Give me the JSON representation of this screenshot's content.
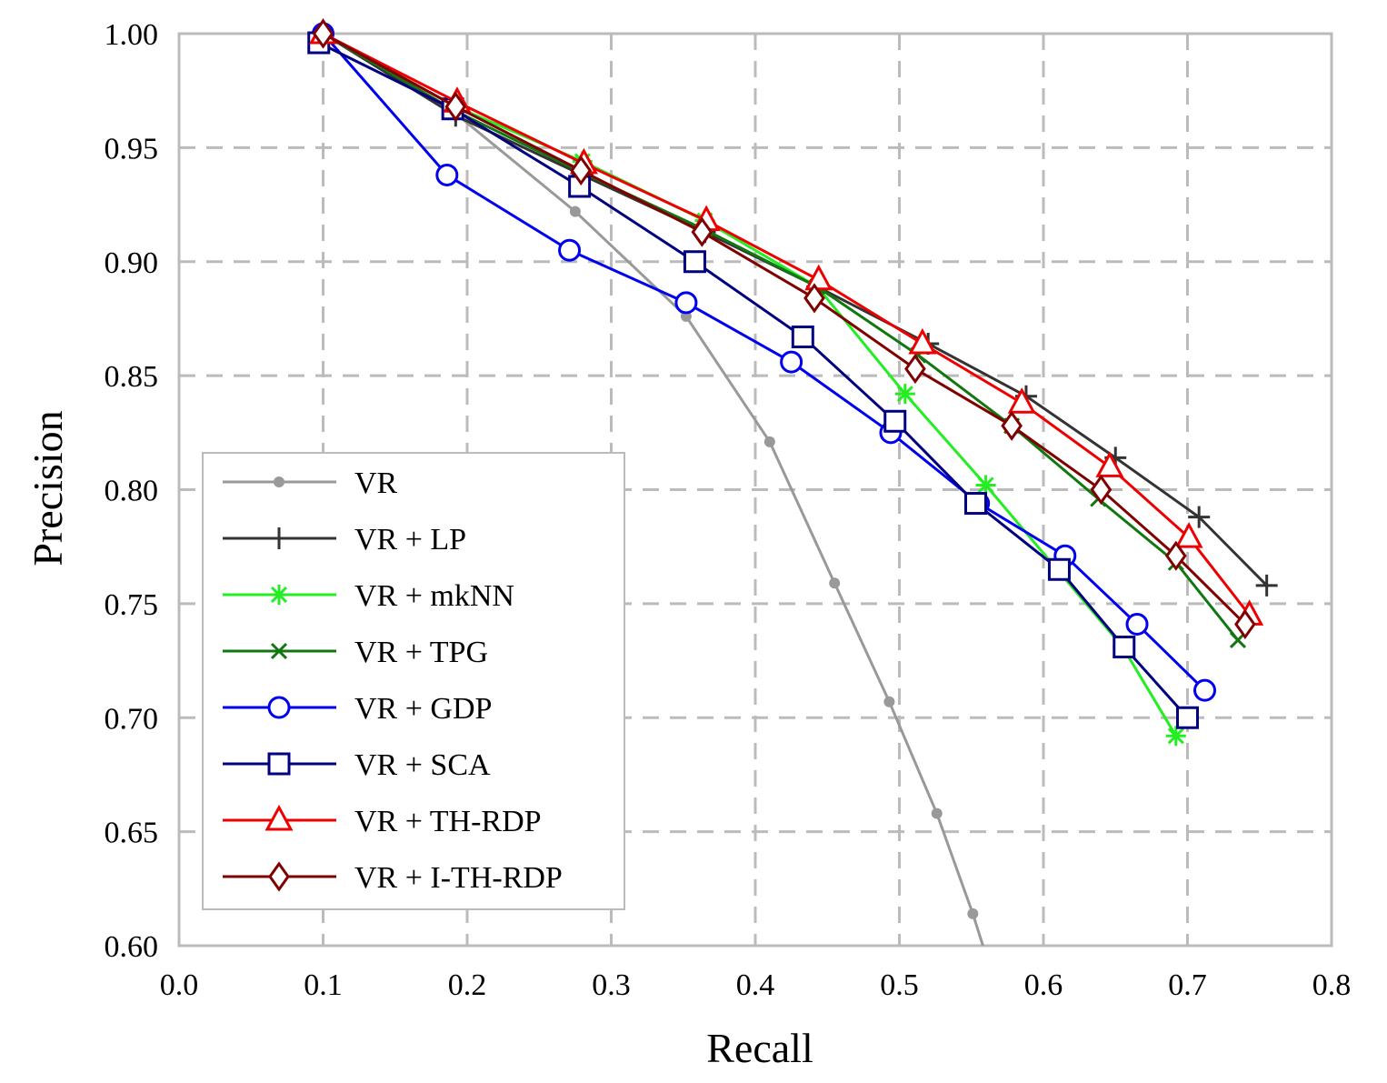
{
  "chart_data": {
    "type": "line",
    "title": "",
    "xlabel": "Recall",
    "ylabel": "Precision",
    "xlim": [
      0.0,
      0.8
    ],
    "ylim": [
      0.6,
      1.0
    ],
    "xticks": [
      "0.0",
      "0.1",
      "0.2",
      "0.3",
      "0.4",
      "0.5",
      "0.6",
      "0.7",
      "0.8"
    ],
    "yticks": [
      "0.60",
      "0.65",
      "0.70",
      "0.75",
      "0.80",
      "0.85",
      "0.90",
      "0.95",
      "1.00"
    ],
    "grid": true,
    "legend_position": "bottom-left",
    "series": [
      {
        "name": "VR",
        "color": "#999999",
        "marker": "dot",
        "x": [
          0.1,
          0.19,
          0.275,
          0.352,
          0.41,
          0.455,
          0.493,
          0.526,
          0.551,
          0.558
        ],
        "y": [
          1.0,
          0.966,
          0.922,
          0.876,
          0.821,
          0.759,
          0.707,
          0.658,
          0.614,
          0.6
        ]
      },
      {
        "name": "VR + LP",
        "color": "#333333",
        "marker": "plus",
        "x": [
          0.1,
          0.192,
          0.28,
          0.365,
          0.443,
          0.52,
          0.588,
          0.65,
          0.708,
          0.755
        ],
        "y": [
          1.0,
          0.964,
          0.938,
          0.913,
          0.889,
          0.864,
          0.841,
          0.814,
          0.788,
          0.758
        ]
      },
      {
        "name": "VR + mkNN",
        "color": "#22ee22",
        "marker": "asterisk",
        "x": [
          0.1,
          0.192,
          0.28,
          0.365,
          0.443,
          0.504,
          0.56,
          0.655,
          0.692
        ],
        "y": [
          1.0,
          0.968,
          0.944,
          0.918,
          0.889,
          0.842,
          0.802,
          0.731,
          0.692
        ]
      },
      {
        "name": "VR + TPG",
        "color": "#117711",
        "marker": "x",
        "x": [
          0.1,
          0.192,
          0.28,
          0.365,
          0.443,
          0.513,
          0.578,
          0.638,
          0.692,
          0.735
        ],
        "y": [
          1.0,
          0.966,
          0.939,
          0.914,
          0.889,
          0.859,
          0.828,
          0.796,
          0.768,
          0.734
        ]
      },
      {
        "name": "VR + GDP",
        "color": "#0000ee",
        "marker": "circle",
        "x": [
          0.1,
          0.186,
          0.271,
          0.352,
          0.425,
          0.494,
          0.555,
          0.615,
          0.665,
          0.712
        ],
        "y": [
          1.0,
          0.938,
          0.905,
          0.882,
          0.856,
          0.825,
          0.794,
          0.771,
          0.741,
          0.712
        ]
      },
      {
        "name": "VR + SCA",
        "color": "#000080",
        "marker": "square",
        "x": [
          0.097,
          0.19,
          0.278,
          0.358,
          0.433,
          0.497,
          0.553,
          0.611,
          0.656,
          0.7
        ],
        "y": [
          0.996,
          0.967,
          0.933,
          0.9,
          0.867,
          0.83,
          0.794,
          0.765,
          0.731,
          0.7
        ]
      },
      {
        "name": "VR + TH-RDP",
        "color": "#ee0000",
        "marker": "triangle",
        "x": [
          0.1,
          0.193,
          0.281,
          0.366,
          0.444,
          0.516,
          0.585,
          0.646,
          0.701,
          0.743
        ],
        "y": [
          1.0,
          0.97,
          0.943,
          0.918,
          0.892,
          0.864,
          0.838,
          0.81,
          0.779,
          0.745
        ]
      },
      {
        "name": "VR + I-TH-RDP",
        "color": "#800000",
        "marker": "diamond",
        "x": [
          0.1,
          0.192,
          0.279,
          0.363,
          0.441,
          0.511,
          0.578,
          0.64,
          0.692,
          0.74
        ],
        "y": [
          1.0,
          0.968,
          0.94,
          0.913,
          0.884,
          0.853,
          0.828,
          0.8,
          0.771,
          0.741
        ]
      }
    ]
  }
}
